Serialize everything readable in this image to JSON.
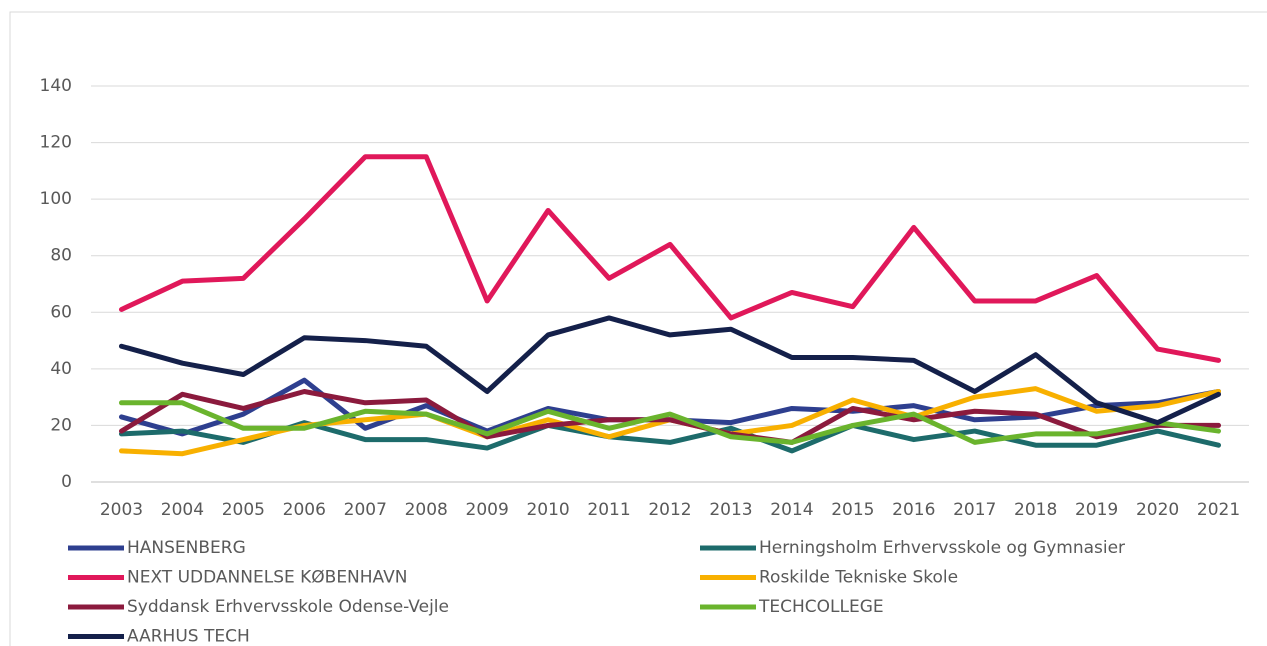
{
  "chart_data": {
    "type": "line",
    "x": [
      2003,
      2004,
      2005,
      2006,
      2007,
      2008,
      2009,
      2010,
      2011,
      2012,
      2013,
      2014,
      2015,
      2016,
      2017,
      2018,
      2019,
      2020,
      2021
    ],
    "ylim": [
      0,
      140
    ],
    "yticks": [
      0,
      20,
      40,
      60,
      80,
      100,
      120,
      140
    ],
    "grid": true,
    "series": [
      {
        "name": "HANSENBERG",
        "color": "#2e3f8f",
        "values": [
          23,
          17,
          24,
          36,
          19,
          27,
          18,
          26,
          22,
          22,
          21,
          26,
          25,
          27,
          22,
          23,
          27,
          28,
          32
        ]
      },
      {
        "name": "Herningsholm Erhvervsskole og Gymnasier",
        "color": "#1d6b6b",
        "values": [
          17,
          18,
          14,
          21,
          15,
          15,
          12,
          20,
          16,
          14,
          19,
          11,
          20,
          15,
          18,
          13,
          13,
          18,
          13
        ]
      },
      {
        "name": "NEXT UDDANNELSE KØBENHAVN",
        "color": "#e0185a",
        "values": [
          61,
          71,
          72,
          93,
          115,
          115,
          64,
          96,
          72,
          84,
          58,
          67,
          62,
          90,
          64,
          64,
          73,
          47,
          43
        ]
      },
      {
        "name": "Roskilde Tekniske Skole",
        "color": "#f8b000",
        "values": [
          11,
          10,
          15,
          20,
          22,
          24,
          16,
          22,
          16,
          22,
          17,
          20,
          29,
          23,
          30,
          33,
          25,
          27,
          32
        ]
      },
      {
        "name": "Syddansk Erhvervsskole Odense-Vejle",
        "color": "#8b1a3d",
        "values": [
          18,
          31,
          26,
          32,
          28,
          29,
          16,
          20,
          22,
          22,
          17,
          14,
          26,
          22,
          25,
          24,
          16,
          20,
          20
        ]
      },
      {
        "name": "TECHCOLLEGE",
        "color": "#6ab42d",
        "values": [
          28,
          28,
          19,
          19,
          25,
          24,
          17,
          25,
          19,
          24,
          16,
          14,
          20,
          24,
          14,
          17,
          17,
          21,
          18
        ]
      },
      {
        "name": "AARHUS TECH",
        "color": "#14204a",
        "values": [
          48,
          42,
          38,
          51,
          50,
          48,
          32,
          52,
          58,
          52,
          54,
          44,
          44,
          43,
          32,
          45,
          28,
          21,
          31
        ]
      }
    ]
  }
}
